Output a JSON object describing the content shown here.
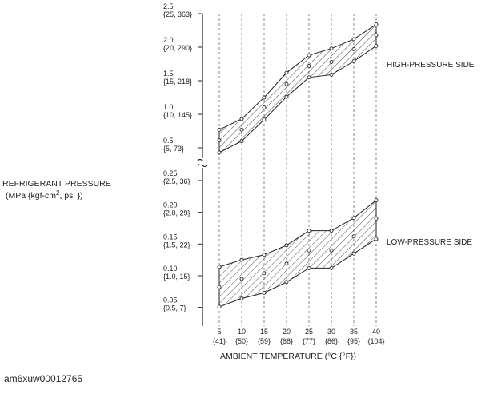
{
  "chart_data": {
    "type": "area",
    "ylabel_line1": "REFRIGERANT PRESSURE",
    "ylabel_line2_prefix": "(MPa {kgf-cm",
    "ylabel_line2_sup": "2",
    "ylabel_line2_suffix": ", psi })",
    "xlabel": "AMBIENT TEMPERATURE  (°C {°F})",
    "x": [
      5,
      10,
      15,
      20,
      25,
      30,
      35,
      40
    ],
    "x_ticks": [
      {
        "value": 5,
        "label": "5",
        "sub": "{41}"
      },
      {
        "value": 10,
        "label": "10",
        "sub": "{50}"
      },
      {
        "value": 15,
        "label": "15",
        "sub": "{59}"
      },
      {
        "value": 20,
        "label": "20",
        "sub": "{68}"
      },
      {
        "value": 25,
        "label": "25",
        "sub": "{77}"
      },
      {
        "value": 30,
        "label": "30",
        "sub": "{86}"
      },
      {
        "value": 35,
        "label": "35",
        "sub": "{95}"
      },
      {
        "value": 40,
        "label": "40",
        "sub": "{104}"
      }
    ],
    "high_ylim": [
      0.4,
      2.5
    ],
    "low_ylim": [
      0.03,
      0.26
    ],
    "high_y_ticks": [
      {
        "value": 2.5,
        "label": "2.5",
        "sub": "{25, 363}"
      },
      {
        "value": 2.0,
        "label": "2.0",
        "sub": "{20, 290}"
      },
      {
        "value": 1.5,
        "label": "1.5",
        "sub": "{15, 218}"
      },
      {
        "value": 1.0,
        "label": "1.0",
        "sub": "{10, 145}"
      },
      {
        "value": 0.5,
        "label": "0.5",
        "sub": "{5, 73}"
      }
    ],
    "low_y_ticks": [
      {
        "value": 0.25,
        "label": "0.25",
        "sub": "{2.5, 36}"
      },
      {
        "value": 0.2,
        "label": "0.20",
        "sub": "{2.0, 29}"
      },
      {
        "value": 0.15,
        "label": "0.15",
        "sub": "{1.5, 22}"
      },
      {
        "value": 0.1,
        "label": "0.10",
        "sub": "{1.0, 15}"
      },
      {
        "value": 0.05,
        "label": "0.05",
        "sub": "{0.5, 7}"
      }
    ],
    "series": [
      {
        "name": "HIGH-PRESSURE SIDE",
        "band": "high",
        "upper": [
          0.77,
          0.93,
          1.25,
          1.62,
          1.88,
          1.98,
          2.12,
          2.34
        ],
        "middle": [
          0.61,
          0.77,
          1.1,
          1.45,
          1.72,
          1.78,
          1.97,
          2.18
        ],
        "lower": [
          0.43,
          0.6,
          0.92,
          1.26,
          1.55,
          1.59,
          1.79,
          2.02
        ]
      },
      {
        "name": "LOW-PRESSURE SIDE",
        "band": "low",
        "upper": [
          0.114,
          0.125,
          0.133,
          0.148,
          0.171,
          0.171,
          0.191,
          0.219
        ],
        "middle": [
          0.082,
          0.095,
          0.104,
          0.119,
          0.14,
          0.14,
          0.162,
          0.19
        ],
        "lower": [
          0.051,
          0.064,
          0.073,
          0.09,
          0.112,
          0.112,
          0.135,
          0.158
        ]
      }
    ],
    "grid": "vertical-dashed"
  },
  "caption": "am6xuw00012765",
  "colors": {
    "ink": "#222222",
    "background": "#ffffff"
  }
}
